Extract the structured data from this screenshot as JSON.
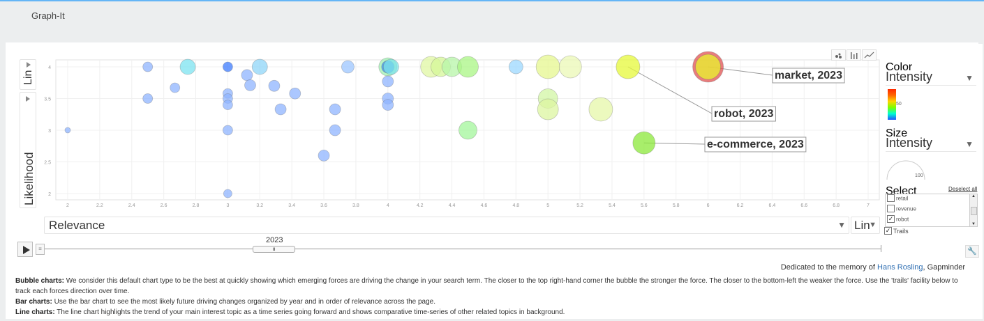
{
  "app": {
    "title": "Graph-It"
  },
  "controls": {
    "y_scale": "Lin",
    "y_indicator": "Likelihood",
    "x_indicator": "Relevance",
    "x_scale": "Lin",
    "time_label": "2023",
    "color_label": "Color",
    "color_value": "Intensity",
    "color_legend_tick": "50",
    "size_label": "Size",
    "size_value": "Intensity",
    "size_legend_tick": "100",
    "select_label": "Select",
    "deselect_all": "Deselect all",
    "select_items": [
      {
        "label": "retail",
        "checked": false
      },
      {
        "label": "revenue",
        "checked": false
      },
      {
        "label": "robot",
        "checked": true
      }
    ],
    "trails_label": "Trails",
    "trails_checked": true
  },
  "chart_data": {
    "type": "scatter",
    "xlim": [
      2,
      7
    ],
    "ylim": [
      2,
      4
    ],
    "x_ticks": [
      "2",
      "2.2",
      "2.4",
      "2.6",
      "2.8",
      "3",
      "3.2",
      "3.4",
      "3.6",
      "3.8",
      "4",
      "4.2",
      "4.4",
      "4.6",
      "4.8",
      "5",
      "5.2",
      "5.4",
      "5.6",
      "5.8",
      "6",
      "6.2",
      "6.4",
      "6.6",
      "6.8",
      "7"
    ],
    "y_ticks": [
      "2",
      "2.5",
      "3",
      "3.5",
      "4"
    ],
    "xlabel": "Relevance",
    "ylabel": "Likelihood",
    "grid": true,
    "points": [
      {
        "x": 2.0,
        "y": 3.0,
        "size": 4,
        "color": "#8fb4ff"
      },
      {
        "x": 2.5,
        "y": 4.0,
        "size": 7,
        "color": "#8fb4ff"
      },
      {
        "x": 2.5,
        "y": 3.5,
        "size": 7,
        "color": "#8fb4ff"
      },
      {
        "x": 2.67,
        "y": 3.67,
        "size": 7,
        "color": "#8fb4ff"
      },
      {
        "x": 2.75,
        "y": 4.0,
        "size": 11,
        "color": "#7ce3f0"
      },
      {
        "x": 3.0,
        "y": 4.0,
        "size": 7,
        "color": "#3d7cff"
      },
      {
        "x": 3.0,
        "y": 3.58,
        "size": 7,
        "color": "#8fb4ff"
      },
      {
        "x": 3.0,
        "y": 3.5,
        "size": 7,
        "color": "#8fb4ff"
      },
      {
        "x": 3.0,
        "y": 3.4,
        "size": 7,
        "color": "#8fb4ff"
      },
      {
        "x": 3.0,
        "y": 3.0,
        "size": 7,
        "color": "#8fb4ff"
      },
      {
        "x": 3.0,
        "y": 2.0,
        "size": 6,
        "color": "#8fb4ff"
      },
      {
        "x": 3.12,
        "y": 3.87,
        "size": 8,
        "color": "#8fb4ff"
      },
      {
        "x": 3.14,
        "y": 3.71,
        "size": 8,
        "color": "#8fb4ff"
      },
      {
        "x": 3.2,
        "y": 4.0,
        "size": 11,
        "color": "#8fd6f8"
      },
      {
        "x": 3.29,
        "y": 3.7,
        "size": 8,
        "color": "#8fb4ff"
      },
      {
        "x": 3.33,
        "y": 3.33,
        "size": 8,
        "color": "#8fb4ff"
      },
      {
        "x": 3.42,
        "y": 3.58,
        "size": 8,
        "color": "#8fb4ff"
      },
      {
        "x": 3.6,
        "y": 2.6,
        "size": 8,
        "color": "#8fb4ff"
      },
      {
        "x": 3.67,
        "y": 3.33,
        "size": 8,
        "color": "#8fb4ff"
      },
      {
        "x": 3.67,
        "y": 3.0,
        "size": 8,
        "color": "#8fb4ff"
      },
      {
        "x": 3.75,
        "y": 4.0,
        "size": 9,
        "color": "#9cc6ff"
      },
      {
        "x": 4.0,
        "y": 4.0,
        "size": 13,
        "color": "#9ff0b2"
      },
      {
        "x": 4.0,
        "y": 4.0,
        "size": 9,
        "color": "#3f8fef"
      },
      {
        "x": 4.02,
        "y": 4.0,
        "size": 11,
        "color": "#7de3ea"
      },
      {
        "x": 4.0,
        "y": 3.77,
        "size": 8,
        "color": "#8fb4ff"
      },
      {
        "x": 4.0,
        "y": 3.5,
        "size": 8,
        "color": "#8fb4ff"
      },
      {
        "x": 4.0,
        "y": 3.4,
        "size": 8,
        "color": "#8fb4ff"
      },
      {
        "x": 4.27,
        "y": 4.0,
        "size": 15,
        "color": "#e0f7a3"
      },
      {
        "x": 4.33,
        "y": 4.0,
        "size": 14,
        "color": "#d6f798"
      },
      {
        "x": 4.4,
        "y": 4.0,
        "size": 14,
        "color": "#b7f5a8"
      },
      {
        "x": 4.5,
        "y": 4.0,
        "size": 15,
        "color": "#a9f584"
      },
      {
        "x": 4.5,
        "y": 3.0,
        "size": 13,
        "color": "#a3f59b"
      },
      {
        "x": 4.8,
        "y": 4.0,
        "size": 10,
        "color": "#9cd8ff"
      },
      {
        "x": 5.0,
        "y": 4.0,
        "size": 17,
        "color": "#e5f78f"
      },
      {
        "x": 5.0,
        "y": 3.5,
        "size": 14,
        "color": "#d2f5a4"
      },
      {
        "x": 5.0,
        "y": 3.33,
        "size": 15,
        "color": "#dcf5a0"
      },
      {
        "x": 5.14,
        "y": 4.0,
        "size": 16,
        "color": "#ebf8b5"
      },
      {
        "x": 5.33,
        "y": 3.33,
        "size": 17,
        "color": "#e5f7a8"
      },
      {
        "x": 5.5,
        "y": 4.0,
        "size": 17,
        "color": "#e6f83a"
      },
      {
        "x": 5.6,
        "y": 2.8,
        "size": 16,
        "color": "#8be83a"
      },
      {
        "x": 6.0,
        "y": 4.0,
        "size": 22,
        "color": "#e25050"
      },
      {
        "x": 6.0,
        "y": 4.0,
        "size": 18,
        "color": "#e8f52e"
      }
    ],
    "annotations": [
      {
        "text": "market, 2023",
        "x": 6.0,
        "y": 4.0
      },
      {
        "text": "robot, 2023",
        "x": 5.5,
        "y": 4.0
      },
      {
        "text": "e-commerce, 2023",
        "x": 5.6,
        "y": 2.8
      }
    ]
  },
  "footer": {
    "dedication_prefix": "Dedicated to the memory of ",
    "dedication_link": "Hans Rosling",
    "dedication_suffix": ", Gapminder",
    "bubble_title": "Bubble charts:",
    "bubble_text": " We consider this default chart type to be the best at quickly showing which emerging forces are driving the change in your search term. The closer to the top right-hand corner the bubble the stronger the force. The closer to the bottom-left the weaker the force. Use the 'trails' facility below to track each forces direction over time.",
    "bar_title": "Bar charts:",
    "bar_text": " Use the bar chart to see the most likely future driving changes organized by year and in order of relevance across the page.",
    "line_title": "Line charts:",
    "line_text": " The line chart highlights the trend of your main interest topic as a time series going forward and shows comparative time-series of other related topics in background."
  }
}
